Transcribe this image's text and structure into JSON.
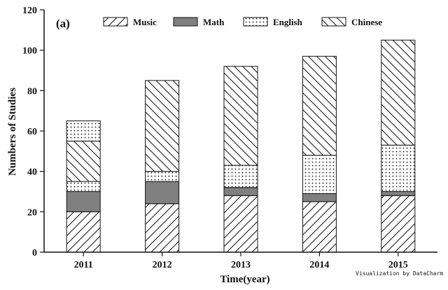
{
  "chart_data": {
    "type": "bar",
    "stacked": true,
    "panel_label": "(a)",
    "xlabel": "Time(year)",
    "ylabel": "Numbers of Studies",
    "ylim": [
      0,
      120
    ],
    "yticks": [
      0,
      20,
      40,
      60,
      80,
      100,
      120
    ],
    "categories": [
      "2011",
      "2012",
      "2013",
      "2014",
      "2015"
    ],
    "series": [
      {
        "name": "Music",
        "pattern": "diag-forward",
        "values": [
          20,
          24,
          28,
          25,
          28
        ]
      },
      {
        "name": "Math",
        "pattern": "solid-gray",
        "values": [
          10,
          11,
          4,
          4,
          2
        ]
      },
      {
        "name": "English",
        "pattern": "dots",
        "values": [
          5,
          5,
          11,
          19,
          23
        ]
      },
      {
        "name": "Chinese",
        "pattern": "diag-back",
        "values": [
          20,
          45,
          49,
          49,
          52
        ]
      },
      {
        "name": "",
        "pattern": "dots",
        "values": [
          10,
          0,
          0,
          0,
          0
        ]
      }
    ],
    "legend_position": "top",
    "grid": false
  },
  "watermark": "Visualization by DataCharm",
  "colors": {
    "math_fill": "#808080",
    "stroke": "#111111",
    "background": "#ffffff"
  }
}
